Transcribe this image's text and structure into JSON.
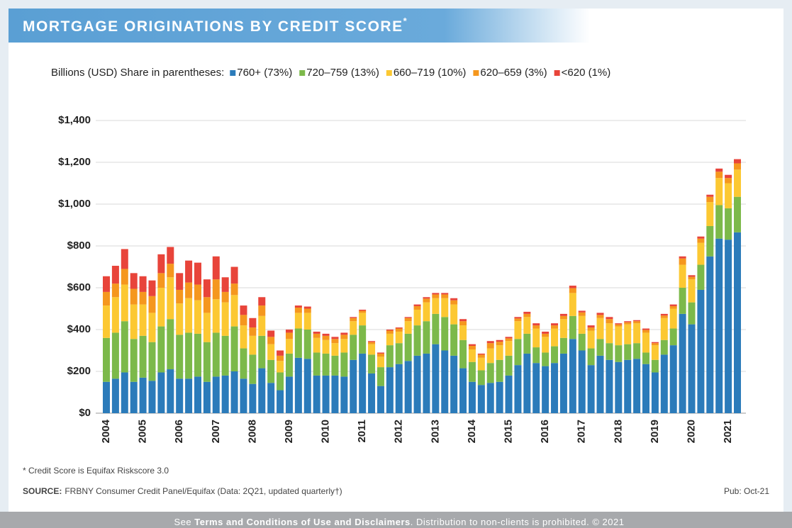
{
  "header": {
    "title": "MORTGAGE ORIGINATIONS BY CREDIT SCORE",
    "title_mark": "*"
  },
  "chart_data": {
    "type": "stacked_bar",
    "legend_prefix": "Billions (USD)  Share in parentheses:",
    "categories": [
      "2004",
      null,
      null,
      null,
      "2005",
      null,
      null,
      null,
      "2006",
      null,
      null,
      null,
      "2007",
      null,
      null,
      null,
      "2008",
      null,
      null,
      null,
      "2009",
      null,
      null,
      null,
      "2010",
      null,
      null,
      null,
      "2011",
      null,
      null,
      null,
      "2012",
      null,
      null,
      null,
      "2013",
      null,
      null,
      null,
      "2014",
      null,
      null,
      null,
      "2015",
      null,
      null,
      null,
      "2016",
      null,
      null,
      null,
      "2017",
      null,
      null,
      null,
      "2018",
      null,
      null,
      null,
      "2019",
      null,
      null,
      null,
      "2020",
      null,
      null,
      null,
      "2021",
      null
    ],
    "series": [
      {
        "name": "760+ (73%)",
        "color": "#2b7bba",
        "values": [
          150,
          165,
          195,
          150,
          170,
          155,
          195,
          210,
          165,
          165,
          175,
          150,
          175,
          180,
          200,
          165,
          140,
          215,
          145,
          110,
          175,
          265,
          260,
          180,
          180,
          180,
          175,
          255,
          285,
          190,
          130,
          220,
          235,
          250,
          275,
          285,
          330,
          300,
          275,
          215,
          150,
          135,
          145,
          150,
          180,
          230,
          285,
          240,
          225,
          240,
          285,
          355,
          300,
          230,
          275,
          255,
          245,
          255,
          260,
          235,
          195,
          280,
          325,
          475,
          425,
          590,
          750,
          835,
          830,
          865
        ]
      },
      {
        "name": "720–759 (13%)",
        "color": "#7cb94a",
        "values": [
          210,
          220,
          245,
          205,
          200,
          185,
          220,
          240,
          210,
          220,
          205,
          190,
          210,
          190,
          215,
          145,
          140,
          155,
          110,
          85,
          110,
          140,
          140,
          110,
          105,
          95,
          115,
          120,
          135,
          90,
          90,
          105,
          100,
          130,
          145,
          155,
          145,
          160,
          150,
          135,
          95,
          70,
          95,
          105,
          95,
          125,
          95,
          75,
          65,
          80,
          75,
          110,
          80,
          80,
          80,
          80,
          80,
          75,
          75,
          55,
          60,
          70,
          80,
          125,
          105,
          120,
          145,
          160,
          150,
          170
        ]
      },
      {
        "name": "660–719 (10%)",
        "color": "#fcc832",
        "values": [
          155,
          170,
          175,
          165,
          150,
          140,
          185,
          200,
          150,
          165,
          160,
          140,
          160,
          160,
          150,
          110,
          90,
          95,
          75,
          55,
          70,
          75,
          80,
          70,
          65,
          60,
          65,
          65,
          60,
          50,
          50,
          55,
          55,
          60,
          75,
          90,
          75,
          90,
          95,
          70,
          60,
          60,
          70,
          70,
          70,
          85,
          80,
          90,
          75,
          85,
          90,
          110,
          85,
          85,
          100,
          95,
          90,
          95,
          95,
          95,
          70,
          105,
          95,
          110,
          110,
          105,
          115,
          130,
          120,
          130
        ]
      },
      {
        "name": "620–659 (3%)",
        "color": "#f5971e",
        "values": [
          65,
          65,
          75,
          75,
          60,
          80,
          70,
          65,
          65,
          75,
          75,
          75,
          95,
          50,
          55,
          50,
          40,
          50,
          35,
          25,
          30,
          25,
          20,
          20,
          20,
          20,
          20,
          15,
          10,
          10,
          15,
          15,
          15,
          15,
          17,
          18,
          18,
          18,
          20,
          20,
          17,
          15,
          25,
          17,
          13,
          13,
          15,
          15,
          15,
          15,
          15,
          23,
          17,
          15,
          15,
          20,
          10,
          10,
          10,
          13,
          10,
          12,
          12,
          30,
          12,
          20,
          25,
          30,
          25,
          30
        ]
      },
      {
        "name": "<620 (1%)",
        "color": "#e8443a",
        "values": [
          75,
          85,
          95,
          75,
          75,
          75,
          90,
          80,
          80,
          105,
          105,
          85,
          110,
          70,
          80,
          45,
          45,
          40,
          30,
          25,
          15,
          10,
          10,
          10,
          10,
          10,
          10,
          5,
          5,
          5,
          5,
          5,
          5,
          5,
          8,
          7,
          7,
          7,
          10,
          10,
          8,
          5,
          10,
          8,
          7,
          7,
          10,
          10,
          10,
          10,
          10,
          12,
          8,
          10,
          10,
          10,
          5,
          5,
          5,
          7,
          5,
          8,
          8,
          10,
          8,
          10,
          10,
          15,
          15,
          20
        ]
      }
    ],
    "ylim": [
      0,
      1400
    ],
    "yticks": [
      {
        "value": 0,
        "label": "$0"
      },
      {
        "value": 200,
        "label": "$200"
      },
      {
        "value": 400,
        "label": "$400"
      },
      {
        "value": 600,
        "label": "$600"
      },
      {
        "value": 800,
        "label": "$800"
      },
      {
        "value": 1000,
        "label": "$1,000"
      },
      {
        "value": 1200,
        "label": "$1,200"
      },
      {
        "value": 1400,
        "label": "$1,400"
      }
    ],
    "grid": true
  },
  "footnote": "* Credit Score is Equifax Riskscore 3.0",
  "source": {
    "label": "SOURCE:",
    "text": "FRBNY Consumer Credit Panel/Equifax (Data: 2Q21, updated quarterly†)"
  },
  "pub": "Pub: Oct-21",
  "footer": {
    "pre": "See",
    "link": "Terms and Conditions of Use and Disclaimers",
    "post": ". Distribution to non-clients is prohibited. © 2021"
  }
}
